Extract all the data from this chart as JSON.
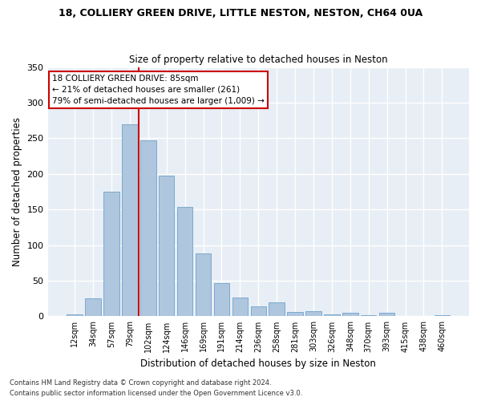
{
  "title_line1": "18, COLLIERY GREEN DRIVE, LITTLE NESTON, NESTON, CH64 0UA",
  "title_line2": "Size of property relative to detached houses in Neston",
  "xlabel": "Distribution of detached houses by size in Neston",
  "ylabel": "Number of detached properties",
  "categories": [
    "12sqm",
    "34sqm",
    "57sqm",
    "79sqm",
    "102sqm",
    "124sqm",
    "146sqm",
    "169sqm",
    "191sqm",
    "214sqm",
    "236sqm",
    "258sqm",
    "281sqm",
    "303sqm",
    "326sqm",
    "348sqm",
    "370sqm",
    "393sqm",
    "415sqm",
    "438sqm",
    "460sqm"
  ],
  "values": [
    3,
    25,
    175,
    270,
    247,
    197,
    154,
    88,
    47,
    26,
    14,
    20,
    6,
    7,
    3,
    5,
    2,
    5,
    1,
    0,
    2
  ],
  "bar_color": "#aec6de",
  "bar_edge_color": "#7baacf",
  "background_color": "#e8eef5",
  "grid_color": "#ffffff",
  "annotation_line1": "18 COLLIERY GREEN DRIVE: 85sqm",
  "annotation_line2": "← 21% of detached houses are smaller (261)",
  "annotation_line3": "79% of semi-detached houses are larger (1,009) →",
  "annotation_box_color": "#ffffff",
  "annotation_box_edge_color": "#cc0000",
  "vline_x": 3.5,
  "vline_color": "#cc0000",
  "ylim": [
    0,
    350
  ],
  "yticks": [
    0,
    50,
    100,
    150,
    200,
    250,
    300,
    350
  ],
  "footnote1": "Contains HM Land Registry data © Crown copyright and database right 2024.",
  "footnote2": "Contains public sector information licensed under the Open Government Licence v3.0."
}
